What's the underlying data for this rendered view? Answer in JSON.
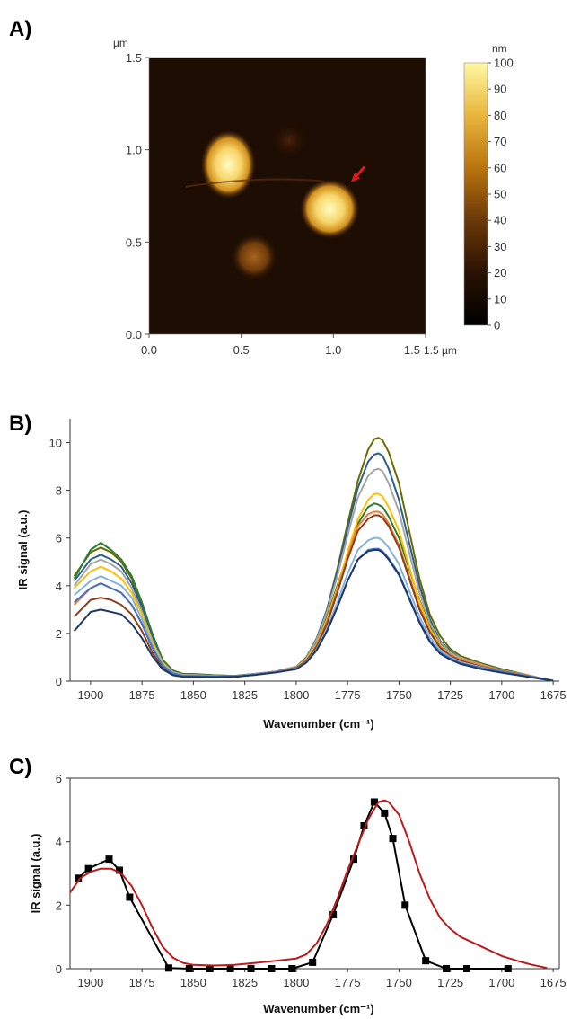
{
  "chart_data": [
    {
      "panel": "A)",
      "type": "heatmap",
      "x_unit": "1.5 µm",
      "y_unit": "µm",
      "xticks": [
        "0.0",
        "0.5",
        "1.0",
        "1.5"
      ],
      "yticks": [
        "0.0",
        "0.5",
        "1.0",
        "1.5"
      ],
      "xlim": [
        0,
        1.5
      ],
      "ylim": [
        0,
        1.5
      ],
      "colorbar": {
        "unit": "nm",
        "min": 0,
        "max": 100,
        "ticks": [
          "0",
          "10",
          "20",
          "30",
          "40",
          "50",
          "60",
          "70",
          "80",
          "90",
          "100"
        ]
      },
      "features": [
        {
          "x": 0.43,
          "y": 0.92,
          "rx": 0.12,
          "ry": 0.15,
          "height": 88
        },
        {
          "x": 0.98,
          "y": 0.68,
          "rx": 0.13,
          "ry": 0.13,
          "height": 96
        },
        {
          "x": 0.57,
          "y": 0.42,
          "rx": 0.1,
          "ry": 0.1,
          "height": 32
        },
        {
          "x": 0.76,
          "y": 1.05,
          "rx": 0.08,
          "ry": 0.08,
          "height": 14
        }
      ],
      "annotation": {
        "type": "arrow",
        "color": "#e31a1c",
        "points_to": [
          1.1,
          0.83
        ]
      }
    },
    {
      "panel": "B)",
      "type": "line",
      "xlabel": "Wavenumber (cm⁻¹)",
      "ylabel": "IR  signal (a.u.)",
      "xlim": [
        1910,
        1672
      ],
      "ylim": [
        0,
        11
      ],
      "xticks": [
        1900,
        1875,
        1850,
        1825,
        1800,
        1775,
        1750,
        1725,
        1700,
        1675
      ],
      "yticks": [
        0,
        2,
        4,
        6,
        8,
        10
      ],
      "x": [
        1908,
        1900,
        1895,
        1890,
        1885,
        1880,
        1875,
        1870,
        1865,
        1860,
        1855,
        1850,
        1840,
        1830,
        1820,
        1810,
        1800,
        1795,
        1790,
        1785,
        1780,
        1775,
        1770,
        1765,
        1762,
        1760,
        1758,
        1755,
        1750,
        1745,
        1740,
        1735,
        1730,
        1725,
        1720,
        1710,
        1700,
        1690,
        1680,
        1675
      ],
      "series": [
        {
          "color": "#6b6b00",
          "values": [
            4.4,
            5.4,
            5.6,
            5.4,
            5.0,
            4.3,
            3.2,
            1.9,
            0.9,
            0.45,
            0.3,
            0.3,
            0.25,
            0.22,
            0.3,
            0.4,
            0.6,
            1.0,
            1.8,
            3.0,
            4.7,
            6.6,
            8.4,
            9.7,
            10.15,
            10.2,
            10.1,
            9.6,
            8.3,
            6.3,
            4.3,
            2.8,
            1.9,
            1.35,
            1.05,
            0.75,
            0.5,
            0.3,
            0.1,
            0.02
          ]
        },
        {
          "color": "#2e7d32",
          "values": [
            4.3,
            5.5,
            5.8,
            5.5,
            5.1,
            4.4,
            3.3,
            2.0,
            0.9,
            0.4,
            0.28,
            0.28,
            0.24,
            0.22,
            0.3,
            0.4,
            0.6,
            0.95,
            1.6,
            2.7,
            4.0,
            5.3,
            6.6,
            7.3,
            7.45,
            7.4,
            7.3,
            6.9,
            6.0,
            4.7,
            3.4,
            2.3,
            1.6,
            1.2,
            0.95,
            0.7,
            0.5,
            0.3,
            0.1,
            0.02
          ]
        },
        {
          "color": "#2b5f8a",
          "values": [
            4.2,
            5.1,
            5.3,
            5.1,
            4.8,
            4.1,
            3.1,
            1.8,
            0.8,
            0.4,
            0.27,
            0.27,
            0.23,
            0.21,
            0.3,
            0.4,
            0.6,
            0.95,
            1.8,
            3.0,
            4.6,
            6.4,
            8.1,
            9.2,
            9.5,
            9.55,
            9.45,
            8.9,
            7.6,
            5.8,
            4.0,
            2.6,
            1.7,
            1.25,
            0.95,
            0.7,
            0.45,
            0.3,
            0.1,
            0.02
          ]
        },
        {
          "color": "#a5a5a5",
          "values": [
            4.0,
            4.9,
            5.1,
            4.9,
            4.6,
            3.9,
            2.9,
            1.7,
            0.8,
            0.38,
            0.26,
            0.26,
            0.22,
            0.2,
            0.3,
            0.4,
            0.6,
            0.95,
            1.75,
            2.9,
            4.4,
            6.1,
            7.7,
            8.6,
            8.85,
            8.9,
            8.8,
            8.3,
            7.1,
            5.4,
            3.7,
            2.45,
            1.65,
            1.2,
            0.95,
            0.7,
            0.45,
            0.3,
            0.1,
            0.02
          ]
        },
        {
          "color": "#ffc000",
          "values": [
            3.9,
            4.6,
            4.8,
            4.6,
            4.3,
            3.7,
            2.8,
            1.6,
            0.75,
            0.35,
            0.25,
            0.25,
            0.22,
            0.2,
            0.28,
            0.38,
            0.55,
            0.9,
            1.55,
            2.6,
            3.9,
            5.4,
            6.8,
            7.6,
            7.85,
            7.85,
            7.75,
            7.3,
            6.3,
            4.8,
            3.35,
            2.2,
            1.5,
            1.1,
            0.9,
            0.65,
            0.45,
            0.28,
            0.1,
            0.02
          ]
        },
        {
          "color": "#ed7d31",
          "values": [
            3.2,
            3.9,
            4.1,
            3.9,
            3.7,
            3.2,
            2.4,
            1.4,
            0.65,
            0.32,
            0.22,
            0.22,
            0.2,
            0.2,
            0.28,
            0.38,
            0.55,
            0.85,
            1.5,
            2.5,
            3.8,
            5.2,
            6.5,
            7.0,
            7.1,
            7.1,
            7.0,
            6.6,
            5.7,
            4.4,
            3.1,
            2.1,
            1.45,
            1.1,
            0.9,
            0.65,
            0.45,
            0.28,
            0.1,
            0.02
          ]
        },
        {
          "color": "#8c3d1a",
          "values": [
            2.7,
            3.4,
            3.5,
            3.4,
            3.2,
            2.8,
            2.1,
            1.2,
            0.55,
            0.3,
            0.2,
            0.2,
            0.18,
            0.2,
            0.28,
            0.38,
            0.55,
            0.85,
            1.45,
            2.4,
            3.7,
            5.1,
            6.3,
            6.8,
            6.95,
            6.95,
            6.85,
            6.5,
            5.6,
            4.3,
            3.0,
            2.05,
            1.4,
            1.05,
            0.85,
            0.6,
            0.42,
            0.26,
            0.1,
            0.02
          ]
        },
        {
          "color": "#86b3dc",
          "values": [
            3.6,
            4.2,
            4.4,
            4.2,
            4.0,
            3.5,
            2.6,
            1.5,
            0.7,
            0.35,
            0.24,
            0.24,
            0.21,
            0.2,
            0.28,
            0.38,
            0.52,
            0.8,
            1.35,
            2.2,
            3.3,
            4.5,
            5.5,
            5.9,
            6.0,
            6.0,
            5.9,
            5.6,
            4.9,
            3.8,
            2.7,
            1.85,
            1.3,
            1.0,
            0.8,
            0.58,
            0.4,
            0.25,
            0.1,
            0.02
          ]
        },
        {
          "color": "#4472c4",
          "values": [
            3.3,
            3.9,
            4.1,
            3.9,
            3.7,
            3.2,
            2.4,
            1.4,
            0.65,
            0.32,
            0.22,
            0.22,
            0.2,
            0.19,
            0.27,
            0.37,
            0.5,
            0.78,
            1.3,
            2.1,
            3.1,
            4.2,
            5.1,
            5.5,
            5.55,
            5.55,
            5.45,
            5.15,
            4.5,
            3.5,
            2.5,
            1.7,
            1.2,
            0.95,
            0.75,
            0.55,
            0.38,
            0.24,
            0.1,
            0.02
          ]
        },
        {
          "color": "#203864",
          "values": [
            2.1,
            2.9,
            3.0,
            2.9,
            2.8,
            2.4,
            1.8,
            1.05,
            0.5,
            0.25,
            0.18,
            0.18,
            0.17,
            0.18,
            0.26,
            0.36,
            0.5,
            0.78,
            1.3,
            2.1,
            3.1,
            4.2,
            5.1,
            5.45,
            5.5,
            5.5,
            5.4,
            5.1,
            4.45,
            3.45,
            2.45,
            1.65,
            1.15,
            0.9,
            0.72,
            0.5,
            0.35,
            0.22,
            0.08,
            0.02
          ]
        }
      ]
    },
    {
      "panel": "C)",
      "type": "line",
      "xlabel": "Wavenumber (cm⁻¹)",
      "ylabel": "IR signal (a.u.)",
      "xlim": [
        1910,
        1672
      ],
      "ylim": [
        0,
        6
      ],
      "xticks": [
        1900,
        1875,
        1850,
        1825,
        1800,
        1775,
        1750,
        1725,
        1700,
        1675
      ],
      "yticks": [
        0,
        2,
        4,
        6
      ],
      "series": [
        {
          "color": "#000000",
          "marker": "square",
          "x": [
            1906,
            1901,
            1891,
            1886,
            1881,
            1862,
            1852,
            1842,
            1832,
            1822,
            1812,
            1802,
            1792,
            1782,
            1772,
            1767,
            1762,
            1757,
            1753,
            1747,
            1737,
            1727,
            1717,
            1697
          ],
          "values": [
            2.85,
            3.15,
            3.45,
            3.1,
            2.25,
            0.02,
            0.0,
            0.0,
            0.0,
            0.0,
            0.0,
            0.0,
            0.2,
            1.7,
            3.45,
            4.5,
            5.25,
            4.9,
            4.1,
            2.0,
            0.25,
            0.0,
            0.0,
            0.0
          ]
        },
        {
          "color": "#c0181b",
          "marker": "none",
          "x": [
            1910,
            1905,
            1900,
            1895,
            1890,
            1885,
            1880,
            1875,
            1870,
            1865,
            1860,
            1855,
            1850,
            1840,
            1830,
            1820,
            1810,
            1800,
            1795,
            1790,
            1785,
            1780,
            1775,
            1770,
            1765,
            1760,
            1757,
            1755,
            1750,
            1745,
            1740,
            1735,
            1730,
            1725,
            1720,
            1710,
            1700,
            1690,
            1685,
            1680,
            1678
          ],
          "values": [
            2.4,
            2.85,
            3.05,
            3.15,
            3.15,
            3.0,
            2.6,
            2.0,
            1.3,
            0.7,
            0.35,
            0.18,
            0.12,
            0.1,
            0.12,
            0.18,
            0.25,
            0.32,
            0.45,
            0.8,
            1.4,
            2.2,
            3.1,
            3.9,
            4.7,
            5.25,
            5.3,
            5.25,
            4.85,
            4.0,
            3.0,
            2.2,
            1.6,
            1.25,
            1.0,
            0.7,
            0.4,
            0.2,
            0.12,
            0.05,
            0.02
          ]
        }
      ]
    }
  ]
}
